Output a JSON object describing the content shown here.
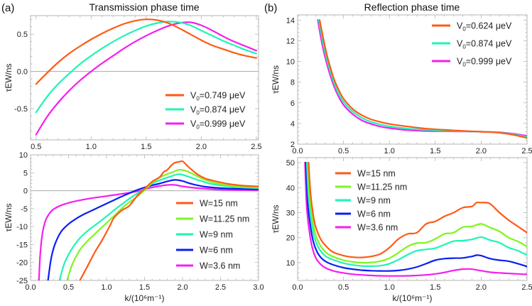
{
  "figure": {
    "panel_tags": [
      "(a)",
      "(b)"
    ],
    "titles": [
      "Transmission phase time",
      "Reflection phase time"
    ],
    "colors": {
      "orange": "#ff5a14",
      "green": "#7ff51e",
      "cyan": "#1ef5b4",
      "blue": "#0a1ef5",
      "magenta": "#f51ef0"
    }
  },
  "chart_data": [
    {
      "id": "a-top",
      "type": "line",
      "title": "Transmission phase time",
      "panel": "(a)",
      "xlabel": "",
      "ylabel": "τEW/ns",
      "xlim": [
        0.45,
        2.52
      ],
      "ylim": [
        -0.92,
        0.75
      ],
      "xticks": [
        0.5,
        1.0,
        1.5,
        2.0,
        2.5
      ],
      "xtick_labels": [
        "0.5",
        "1.0",
        "1.5",
        "2.0",
        "2.5"
      ],
      "yticks": [
        -0.5,
        0.0,
        0.5
      ],
      "ytick_labels": [
        "-0.5",
        "0.0",
        "0.5"
      ],
      "zero_line": true,
      "grid": false,
      "legend_position": "bottom-right",
      "series": [
        {
          "name": "V0=0.749 μeV",
          "label_main": "V",
          "label_sub": "0",
          "label_rest": "=0.749 μeV",
          "color": "#ff5a14",
          "x": [
            0.5,
            0.6,
            0.7,
            0.8,
            0.9,
            1.0,
            1.1,
            1.2,
            1.3,
            1.4,
            1.5,
            1.6,
            1.7,
            1.8,
            1.9,
            2.0,
            2.1,
            2.2,
            2.3,
            2.4,
            2.5
          ],
          "y": [
            -0.17,
            -0.02,
            0.12,
            0.24,
            0.34,
            0.43,
            0.51,
            0.58,
            0.64,
            0.68,
            0.7,
            0.69,
            0.65,
            0.58,
            0.5,
            0.42,
            0.35,
            0.3,
            0.25,
            0.21,
            0.18
          ]
        },
        {
          "name": "V0=0.874 μeV",
          "label_main": "V",
          "label_sub": "0",
          "label_rest": "=0.874 μeV",
          "color": "#1ef5b4",
          "x": [
            0.5,
            0.6,
            0.7,
            0.8,
            0.9,
            1.0,
            1.1,
            1.2,
            1.3,
            1.4,
            1.5,
            1.6,
            1.7,
            1.8,
            1.9,
            2.0,
            2.1,
            2.2,
            2.3,
            2.4,
            2.5
          ],
          "y": [
            -0.55,
            -0.34,
            -0.17,
            -0.03,
            0.1,
            0.21,
            0.31,
            0.4,
            0.48,
            0.55,
            0.61,
            0.65,
            0.67,
            0.66,
            0.62,
            0.55,
            0.48,
            0.41,
            0.35,
            0.29,
            0.24
          ]
        },
        {
          "name": "V0=0.999 μeV",
          "label_main": "V",
          "label_sub": "0",
          "label_rest": "=0.999 μeV",
          "color": "#f51ef0",
          "x": [
            0.5,
            0.6,
            0.7,
            0.8,
            0.9,
            1.0,
            1.1,
            1.2,
            1.3,
            1.4,
            1.5,
            1.6,
            1.7,
            1.8,
            1.9,
            2.0,
            2.1,
            2.2,
            2.3,
            2.4,
            2.5
          ],
          "y": [
            -0.85,
            -0.61,
            -0.42,
            -0.26,
            -0.12,
            0.0,
            0.11,
            0.21,
            0.31,
            0.4,
            0.48,
            0.55,
            0.61,
            0.65,
            0.66,
            0.62,
            0.55,
            0.47,
            0.4,
            0.34,
            0.28
          ]
        }
      ]
    },
    {
      "id": "a-bottom",
      "type": "line",
      "title": "",
      "panel": "(a)",
      "xlabel": "k/(10⁶m⁻¹)",
      "ylabel": "τEW/ns",
      "xlim": [
        0.0,
        3.0
      ],
      "ylim": [
        -25,
        10
      ],
      "xticks": [
        0.0,
        0.5,
        1.0,
        1.5,
        2.0,
        2.5,
        3.0
      ],
      "xtick_labels": [
        "0.0",
        "0.5",
        "1.0",
        "1.5",
        "2.0",
        "2.5",
        "3.0"
      ],
      "yticks": [
        -25,
        -20,
        -15,
        -10,
        -5,
        0,
        5,
        10
      ],
      "ytick_labels": [
        "-25",
        "-20",
        "-15",
        "-10",
        "-5",
        "0",
        "5",
        "10"
      ],
      "zero_line": true,
      "grid": false,
      "legend_position": "right",
      "series": [
        {
          "name": "W=15 nm",
          "color": "#ff5a14",
          "x": [
            0.65,
            0.75,
            0.85,
            0.95,
            1.05,
            1.1,
            1.2,
            1.3,
            1.4,
            1.5,
            1.6,
            1.7,
            1.75,
            1.8,
            1.85,
            1.9,
            1.95,
            2.0,
            2.05,
            2.1,
            2.2,
            2.3,
            2.4,
            2.6,
            2.8,
            3.0
          ],
          "y": [
            -25,
            -21,
            -17,
            -13.5,
            -9.5,
            -7.5,
            -5.5,
            -4.2,
            -1.5,
            0.5,
            2.5,
            3.8,
            5.2,
            5.8,
            7.0,
            7.8,
            8.0,
            8.2,
            7.2,
            6.2,
            4.5,
            3.4,
            2.8,
            1.9,
            1.4,
            1.2
          ]
        },
        {
          "name": "W=11.25 nm",
          "color": "#7ff51e",
          "x": [
            0.48,
            0.55,
            0.65,
            0.75,
            0.85,
            0.95,
            1.05,
            1.15,
            1.25,
            1.35,
            1.45,
            1.55,
            1.65,
            1.75,
            1.85,
            1.95,
            2.05,
            2.15,
            2.3,
            2.5,
            2.7,
            3.0
          ],
          "y": [
            -25,
            -20.5,
            -16.5,
            -14,
            -12,
            -10,
            -8,
            -6,
            -4,
            -2.5,
            -0.8,
            1.2,
            3.0,
            4.2,
            5.0,
            5.8,
            5.5,
            4.5,
            3.0,
            1.8,
            1.2,
            0.9
          ]
        },
        {
          "name": "W=9 nm",
          "color": "#1ef5b4",
          "x": [
            0.38,
            0.45,
            0.55,
            0.65,
            0.75,
            0.85,
            0.95,
            1.05,
            1.15,
            1.25,
            1.35,
            1.45,
            1.55,
            1.65,
            1.75,
            1.85,
            1.95,
            2.05,
            2.2,
            2.4,
            2.7,
            3.0
          ],
          "y": [
            -25,
            -20,
            -16,
            -13.2,
            -11.2,
            -9.6,
            -8.0,
            -6.3,
            -4.6,
            -3.0,
            -1.5,
            -0.2,
            1.3,
            2.5,
            3.3,
            4.0,
            4.6,
            4.1,
            3.0,
            1.8,
            1.0,
            0.7
          ]
        },
        {
          "name": "W=6 nm",
          "color": "#0a1ef5",
          "x": [
            0.23,
            0.27,
            0.32,
            0.4,
            0.5,
            0.6,
            0.7,
            0.8,
            0.9,
            1.0,
            1.1,
            1.2,
            1.3,
            1.4,
            1.5,
            1.6,
            1.7,
            1.8,
            1.9,
            2.0,
            2.1,
            2.3,
            2.6,
            3.0
          ],
          "y": [
            -25,
            -19,
            -15,
            -11.5,
            -9.3,
            -7.8,
            -6.6,
            -5.6,
            -4.6,
            -3.6,
            -2.6,
            -1.6,
            -0.7,
            0.2,
            0.9,
            1.5,
            2.0,
            2.6,
            3.0,
            2.7,
            2.0,
            1.1,
            0.6,
            0.4
          ]
        },
        {
          "name": "W=3.6 nm",
          "color": "#f51ef0",
          "x": [
            0.11,
            0.13,
            0.16,
            0.2,
            0.25,
            0.3,
            0.4,
            0.5,
            0.6,
            0.8,
            1.0,
            1.2,
            1.4,
            1.5,
            1.6,
            1.7,
            1.8,
            1.9,
            2.0,
            2.2,
            2.5,
            3.0
          ],
          "y": [
            -25,
            -17,
            -11.5,
            -8.2,
            -6.3,
            -5.2,
            -4.1,
            -3.4,
            -2.9,
            -2.1,
            -1.5,
            -0.9,
            -0.2,
            0.4,
            0.9,
            1.3,
            1.6,
            1.6,
            1.2,
            0.7,
            0.3,
            0.1
          ]
        }
      ]
    },
    {
      "id": "b-top",
      "type": "line",
      "title": "Reflection phase time",
      "panel": "(b)",
      "xlabel": "",
      "ylabel": "τEW/ns",
      "xlim": [
        0.0,
        2.5
      ],
      "ylim": [
        2,
        14.5
      ],
      "xticks": [
        0.0,
        0.5,
        1.0,
        1.5,
        2.0,
        2.5
      ],
      "xtick_labels": [
        "0.0",
        "0.5",
        "1.0",
        "1.5",
        "2.0",
        "2.5"
      ],
      "yticks": [
        2,
        4,
        6,
        8,
        10,
        12,
        14
      ],
      "ytick_labels": [
        "2",
        "4",
        "6",
        "8",
        "10",
        "12",
        "14"
      ],
      "zero_line": false,
      "grid": false,
      "legend_position": "top-right",
      "series": [
        {
          "name": "V0=0.624 μeV",
          "label_main": "V",
          "label_sub": "0",
          "label_rest": "=0.624 μeV",
          "color": "#ff5a14",
          "x": [
            0.24,
            0.28,
            0.32,
            0.36,
            0.4,
            0.45,
            0.5,
            0.6,
            0.7,
            0.8,
            0.9,
            1.0,
            1.2,
            1.4,
            1.6,
            1.8,
            2.0,
            2.2,
            2.35,
            2.5
          ],
          "y": [
            14,
            12.2,
            10.6,
            9.3,
            8.2,
            7.2,
            6.4,
            5.4,
            4.8,
            4.4,
            4.15,
            3.95,
            3.7,
            3.5,
            3.38,
            3.28,
            3.2,
            3.1,
            2.9,
            2.6
          ]
        },
        {
          "name": "V0=0.874 μeV",
          "label_main": "V",
          "label_sub": "0",
          "label_rest": "=0.874 μeV",
          "color": "#1ef5b4",
          "x": [
            0.23,
            0.27,
            0.31,
            0.35,
            0.39,
            0.44,
            0.5,
            0.6,
            0.7,
            0.8,
            0.9,
            1.0,
            1.2,
            1.4,
            1.6,
            1.8,
            2.0,
            2.2,
            2.35,
            2.5
          ],
          "y": [
            14,
            12.1,
            10.5,
            9.2,
            8.1,
            7.0,
            6.1,
            5.15,
            4.55,
            4.15,
            3.9,
            3.72,
            3.5,
            3.38,
            3.3,
            3.24,
            3.2,
            3.12,
            2.95,
            2.7
          ]
        },
        {
          "name": "V0=0.999 μeV",
          "label_main": "V",
          "label_sub": "0",
          "label_rest": "=0.999 μeV",
          "color": "#f51ef0",
          "x": [
            0.22,
            0.26,
            0.3,
            0.34,
            0.38,
            0.43,
            0.5,
            0.6,
            0.7,
            0.8,
            0.9,
            1.0,
            1.2,
            1.4,
            1.6,
            1.8,
            2.0,
            2.2,
            2.35,
            2.5
          ],
          "y": [
            14,
            12.0,
            10.4,
            9.1,
            8.0,
            6.9,
            5.8,
            4.9,
            4.3,
            3.95,
            3.7,
            3.55,
            3.35,
            3.27,
            3.24,
            3.22,
            3.2,
            3.14,
            3.0,
            2.8
          ]
        }
      ]
    },
    {
      "id": "b-bottom",
      "type": "line",
      "title": "",
      "panel": "(b)",
      "xlabel": "k/(10⁶m⁻¹)",
      "ylabel": "τEW/ns",
      "xlim": [
        0.0,
        2.5
      ],
      "ylim": [
        2.9,
        52
      ],
      "xticks": [
        0.0,
        0.5,
        1.0,
        1.5,
        2.0,
        2.5
      ],
      "xtick_labels": [
        "0.0",
        "0.5",
        "1.0",
        "1.5",
        "2.0",
        "2.5"
      ],
      "yticks": [
        10,
        20,
        30,
        40,
        50
      ],
      "ytick_labels": [
        "10",
        "20",
        "30",
        "40",
        "50"
      ],
      "zero_line": false,
      "grid": false,
      "legend_position": "top-left",
      "series": [
        {
          "name": "W=15 nm",
          "color": "#ff5a14",
          "x": [
            0.12,
            0.14,
            0.17,
            0.2,
            0.25,
            0.3,
            0.35,
            0.4,
            0.5,
            0.6,
            0.7,
            0.8,
            0.9,
            1.0,
            1.1,
            1.2,
            1.3,
            1.4,
            1.5,
            1.6,
            1.7,
            1.8,
            1.9,
            1.95,
            2.0,
            2.05,
            2.1,
            2.2,
            2.3,
            2.4,
            2.5
          ],
          "y": [
            50,
            38,
            29,
            24,
            19.5,
            17,
            15.2,
            14,
            12.8,
            12.2,
            12.1,
            12.5,
            13.5,
            16,
            19.5,
            21.5,
            22,
            25.5,
            26.5,
            28.5,
            30,
            32,
            32.5,
            34,
            34,
            34,
            33.5,
            30,
            27,
            24.5,
            22
          ]
        },
        {
          "name": "W=11.25 nm",
          "color": "#7ff51e",
          "x": [
            0.11,
            0.13,
            0.16,
            0.19,
            0.23,
            0.28,
            0.33,
            0.4,
            0.5,
            0.6,
            0.7,
            0.8,
            0.9,
            1.0,
            1.1,
            1.2,
            1.3,
            1.4,
            1.5,
            1.6,
            1.7,
            1.8,
            1.9,
            2.0,
            2.1,
            2.2,
            2.3,
            2.4,
            2.5
          ],
          "y": [
            50,
            37,
            28,
            22,
            18,
            15.2,
            13.5,
            12.2,
            11,
            10.3,
            10.0,
            10.1,
            10.6,
            11.8,
            14,
            16.5,
            17.8,
            18,
            19.5,
            21.5,
            22,
            24.2,
            24.5,
            25.5,
            24,
            22.5,
            20,
            18.5,
            16.5
          ]
        },
        {
          "name": "W=9 nm",
          "color": "#1ef5b4",
          "x": [
            0.1,
            0.12,
            0.15,
            0.18,
            0.22,
            0.27,
            0.32,
            0.4,
            0.5,
            0.6,
            0.7,
            0.8,
            0.9,
            1.0,
            1.1,
            1.2,
            1.3,
            1.4,
            1.5,
            1.6,
            1.7,
            1.8,
            1.9,
            2.0,
            2.1,
            2.2,
            2.3,
            2.4,
            2.5
          ],
          "y": [
            50,
            36,
            26.5,
            20.5,
            16.5,
            13.8,
            12.2,
            11,
            9.8,
            9.1,
            8.7,
            8.6,
            8.8,
            9.6,
            11.2,
            13.2,
            14.8,
            15.3,
            15.8,
            17.2,
            18.6,
            18.8,
            19.3,
            20.2,
            19,
            18,
            16,
            14.8,
            13
          ]
        },
        {
          "name": "W=6 nm",
          "color": "#0a1ef5",
          "x": [
            0.09,
            0.11,
            0.14,
            0.17,
            0.21,
            0.26,
            0.32,
            0.4,
            0.5,
            0.6,
            0.7,
            0.8,
            0.9,
            1.0,
            1.1,
            1.2,
            1.3,
            1.4,
            1.5,
            1.6,
            1.7,
            1.8,
            1.9,
            1.95,
            2.0,
            2.1,
            2.2,
            2.3,
            2.4,
            2.5
          ],
          "y": [
            50,
            34,
            24.5,
            18.5,
            14.5,
            11.8,
            10.2,
            9.0,
            8.0,
            7.4,
            7.0,
            6.8,
            6.7,
            6.7,
            6.9,
            7.4,
            8.3,
            9.6,
            11,
            11.6,
            11.8,
            11.9,
            12.5,
            13,
            12.8,
            11.6,
            11,
            10.6,
            9.6,
            8.5
          ]
        },
        {
          "name": "W=3.6 nm",
          "color": "#f51ef0",
          "x": [
            0.08,
            0.1,
            0.13,
            0.16,
            0.2,
            0.25,
            0.3,
            0.4,
            0.5,
            0.6,
            0.7,
            0.8,
            0.9,
            1.0,
            1.1,
            1.2,
            1.3,
            1.4,
            1.5,
            1.6,
            1.7,
            1.8,
            1.85,
            1.9,
            2.0,
            2.1,
            2.2,
            2.3,
            2.4,
            2.5
          ],
          "y": [
            50,
            32,
            22,
            16,
            11.8,
            9.4,
            8.0,
            6.6,
            5.9,
            5.4,
            5.1,
            4.9,
            4.75,
            4.7,
            4.7,
            4.75,
            4.9,
            5.1,
            5.5,
            6.1,
            6.9,
            7.4,
            7.5,
            7.4,
            6.8,
            6.2,
            5.9,
            5.7,
            5.5,
            5.3
          ]
        }
      ]
    }
  ]
}
